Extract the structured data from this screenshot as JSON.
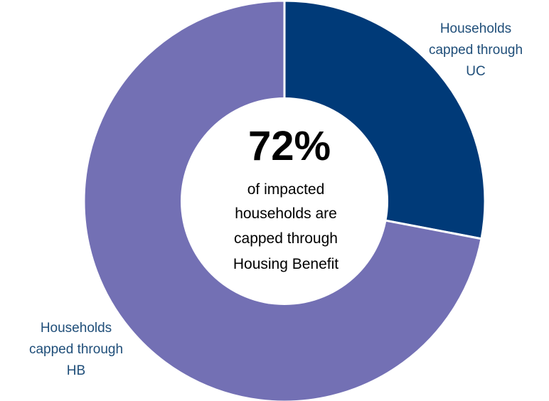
{
  "chart_data": {
    "type": "pie",
    "donut": true,
    "categories": [
      "Households capped through UC",
      "Households capped through HB"
    ],
    "values": [
      28,
      72
    ],
    "colors": [
      "#003a78",
      "#7370b4"
    ],
    "slice_labels": [
      [
        "Households",
        "capped through",
        "UC"
      ],
      [
        "Households",
        "capped through",
        "HB"
      ]
    ],
    "center": {
      "headline": "72%",
      "lines": [
        "of impacted",
        "households are",
        "capped through",
        "Housing Benefit"
      ]
    }
  }
}
